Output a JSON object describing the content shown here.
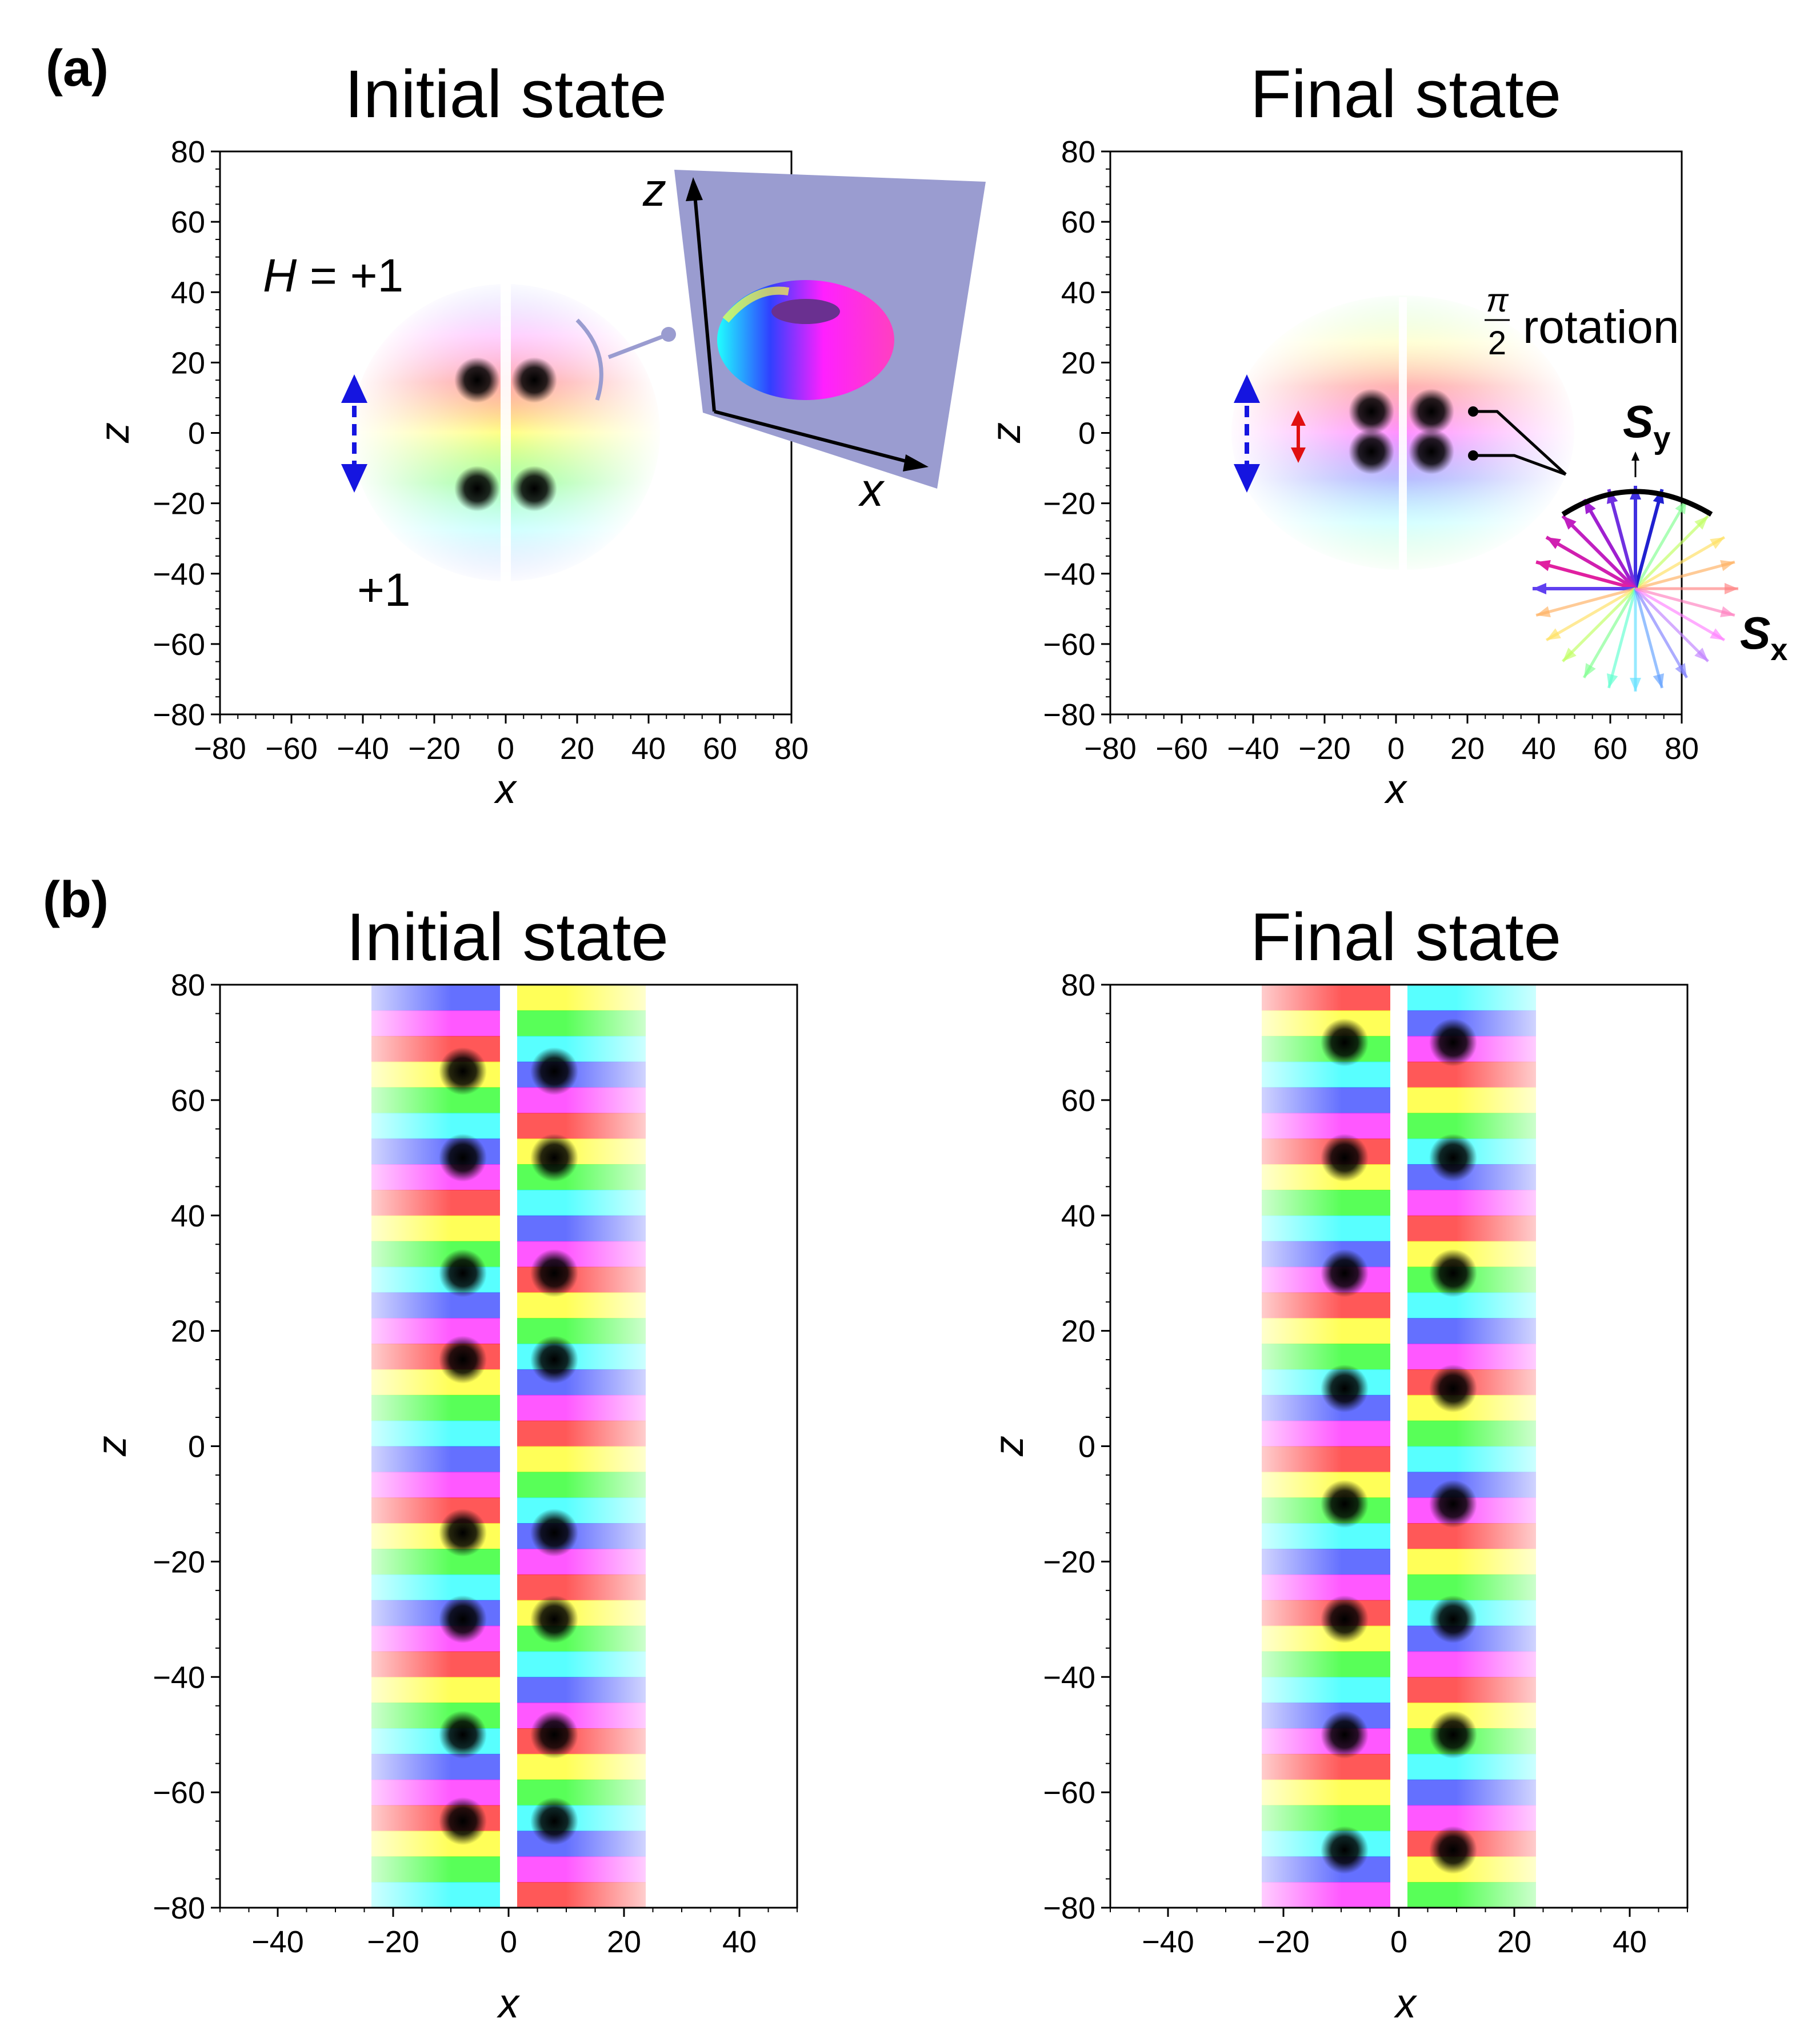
{
  "panel_a": {
    "label": "(a)",
    "initial": {
      "title": "Initial state",
      "xlabel": "x",
      "ylabel": "z",
      "xticks": [
        "−80",
        "−60",
        "−40",
        "−20",
        "0",
        "20",
        "40",
        "60",
        "80"
      ],
      "yticks": [
        "80",
        "60",
        "40",
        "20",
        "0",
        "−20",
        "−40",
        "−60",
        "−80"
      ],
      "h_label_prefix": "H",
      "h_label_value": " = +1",
      "charge_label": "+1",
      "inset_axis_z": "z",
      "inset_axis_x": "x"
    },
    "final": {
      "title": "Final state",
      "xlabel": "x",
      "ylabel": "z",
      "xticks": [
        "−80",
        "−60",
        "−40",
        "−20",
        "0",
        "20",
        "40",
        "60",
        "80"
      ],
      "yticks": [
        "80",
        "60",
        "40",
        "20",
        "0",
        "−20",
        "−40",
        "−60",
        "−80"
      ],
      "rotation_num": "π",
      "rotation_den": "2",
      "rotation_text": "rotation",
      "sy_label": "S",
      "sy_sub": "y",
      "sx_label": "S",
      "sx_sub": "x"
    }
  },
  "panel_b": {
    "label": "(b)",
    "initial": {
      "title": "Initial state",
      "xlabel": "x",
      "ylabel": "z",
      "xticks": [
        "−40",
        "−20",
        "0",
        "20",
        "40"
      ],
      "yticks": [
        "80",
        "60",
        "40",
        "20",
        "0",
        "−20",
        "−40",
        "−60",
        "−80"
      ]
    },
    "final": {
      "title": "Final state",
      "xlabel": "x",
      "ylabel": "z",
      "xticks": [
        "−40",
        "−20",
        "0",
        "20",
        "40"
      ],
      "yticks": [
        "80",
        "60",
        "40",
        "20",
        "0",
        "−20",
        "−40",
        "−60",
        "−80"
      ]
    }
  },
  "colors": {
    "blue_arrow": "#1515e0",
    "red_arrow": "#e01010",
    "inset_plane": "#9a9cd0",
    "connector": "#9a9cd0"
  }
}
